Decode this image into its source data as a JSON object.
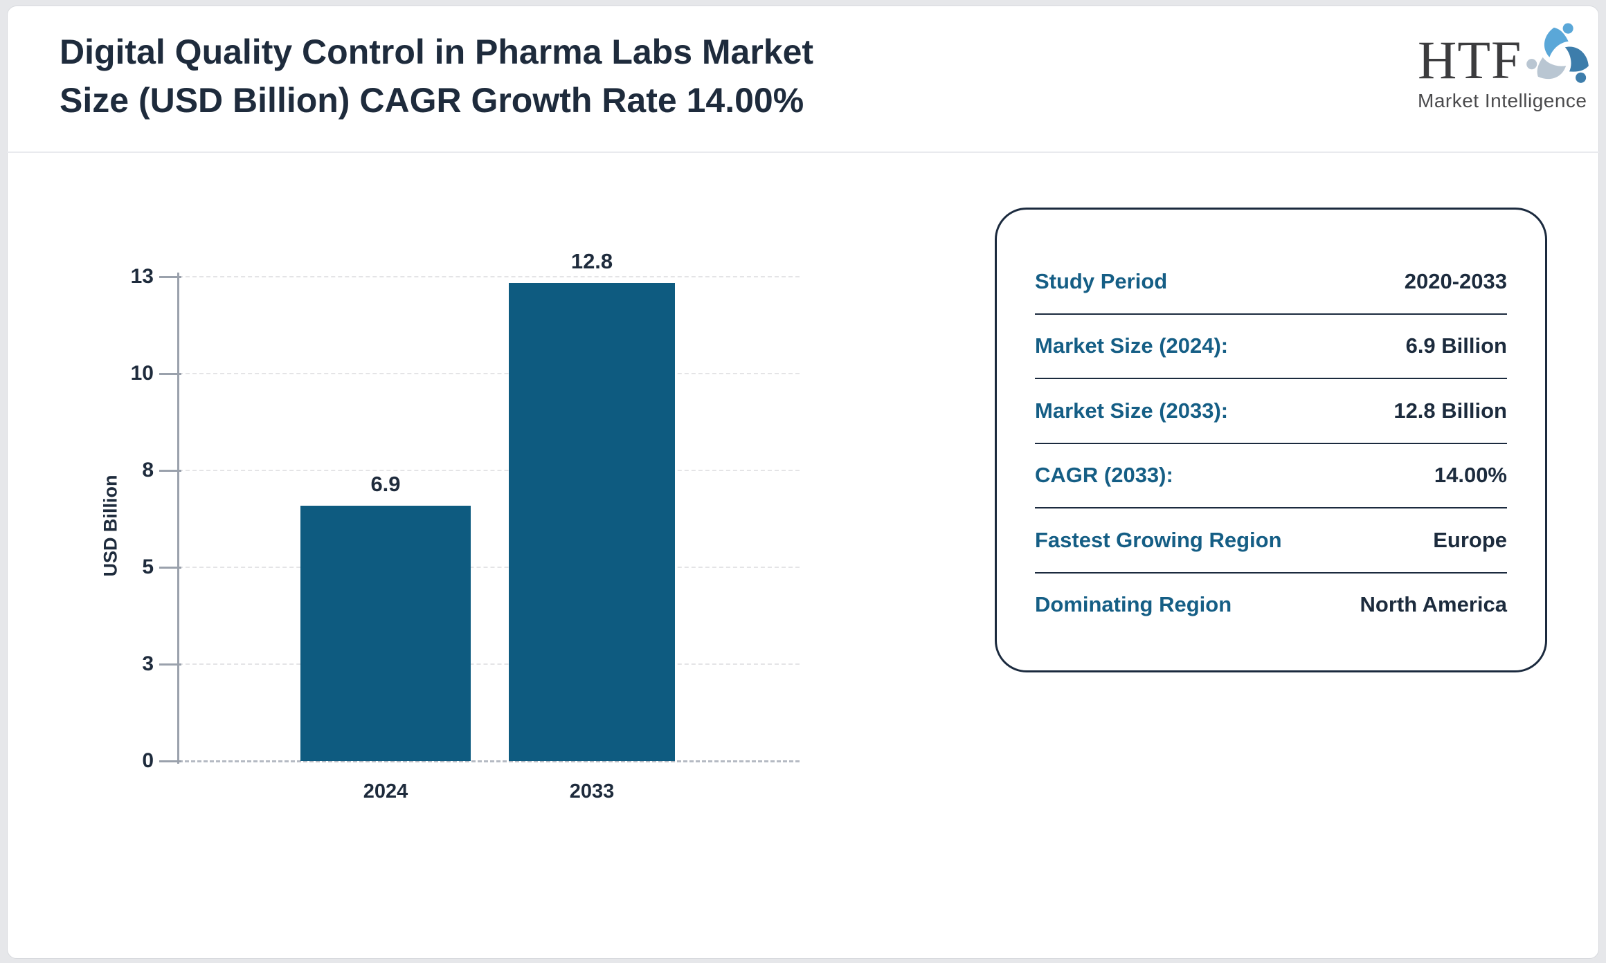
{
  "header": {
    "title_line1": "Digital Quality Control in Pharma Labs Market",
    "title_line2": "Size (USD Billion) CAGR Growth Rate 14.00%",
    "logo": {
      "acronym": "HTF",
      "subtitle": "Market Intelligence",
      "swirl_colors": [
        "#5aa7d8",
        "#3d7dab",
        "#b9c6d2"
      ]
    }
  },
  "chart_data": {
    "type": "bar",
    "categories": [
      "2024",
      "2033"
    ],
    "values": [
      6.9,
      12.8
    ],
    "title": "",
    "xlabel": "",
    "ylabel": "USD Billion",
    "yticks": [
      0,
      3,
      5,
      8,
      10,
      13
    ],
    "ylim": [
      0,
      13
    ],
    "bar_color": "#0e5b80",
    "grid": "horizontal-dashed",
    "legend": "none"
  },
  "panel": {
    "rows": [
      {
        "label": "Study Period",
        "value": "2020-2033"
      },
      {
        "label": "Market Size (2024):",
        "value": "6.9 Billion"
      },
      {
        "label": "Market Size (2033):",
        "value": "12.8 Billion"
      },
      {
        "label": "CAGR (2033):",
        "value": "14.00%"
      },
      {
        "label": "Fastest Growing Region",
        "value": "Europe"
      },
      {
        "label": "Dominating Region",
        "value": "North America"
      }
    ]
  },
  "colors": {
    "page_background": "#e6e7ea",
    "card_background": "#ffffff",
    "title_text": "#1e2b3c",
    "bar_fill": "#0e5b80",
    "panel_label": "#155e85",
    "panel_value": "#1c2b3d",
    "axis": "#9aa1ac",
    "panel_border": "#1b2a3e"
  }
}
